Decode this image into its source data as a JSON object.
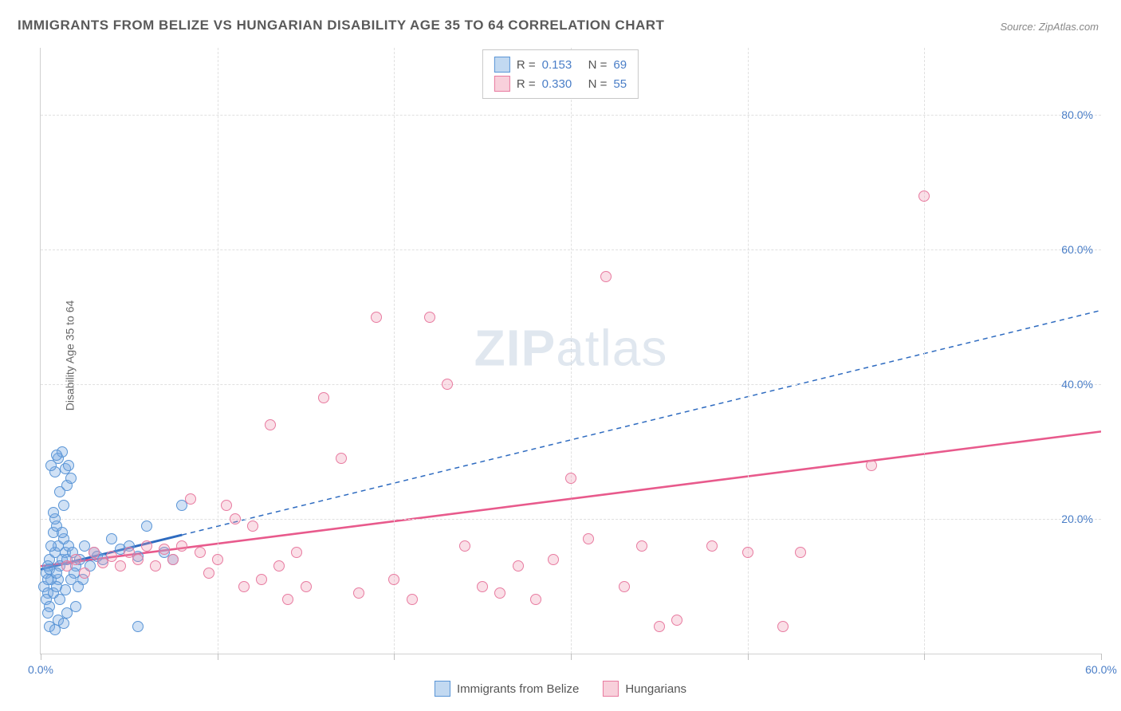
{
  "title": "IMMIGRANTS FROM BELIZE VS HUNGARIAN DISABILITY AGE 35 TO 64 CORRELATION CHART",
  "source": "Source: ZipAtlas.com",
  "y_axis_label": "Disability Age 35 to 64",
  "watermark_bold": "ZIP",
  "watermark_rest": "atlas",
  "chart": {
    "type": "scatter",
    "xlim": [
      0,
      60
    ],
    "ylim": [
      0,
      90
    ],
    "x_ticks": [
      0,
      10,
      20,
      30,
      40,
      50,
      60
    ],
    "x_tick_labels": {
      "0": "0.0%",
      "60": "60.0%"
    },
    "y_ticks": [
      20,
      40,
      60,
      80
    ],
    "y_tick_labels": {
      "20": "20.0%",
      "40": "40.0%",
      "60": "60.0%",
      "80": "80.0%"
    },
    "background_color": "#ffffff",
    "grid_color": "#e0e0e0",
    "series": [
      {
        "name": "Immigrants from Belize",
        "color_fill": "rgba(120,170,225,0.35)",
        "color_border": "#5a95d6",
        "trend_color": "#2e6bc0",
        "trend_style": "solid-then-dashed",
        "trend_solid_xmax": 8,
        "trend_y_at_x0": 12.5,
        "trend_y_at_xmax": 51,
        "R": 0.153,
        "N": 69,
        "points": [
          [
            0.3,
            12
          ],
          [
            0.5,
            14
          ],
          [
            0.6,
            11
          ],
          [
            0.8,
            15
          ],
          [
            0.4,
            13
          ],
          [
            1.0,
            16
          ],
          [
            0.5,
            12.5
          ],
          [
            1.2,
            14
          ],
          [
            0.2,
            10
          ],
          [
            0.7,
            18
          ],
          [
            1.1,
            13
          ],
          [
            0.9,
            19
          ],
          [
            1.3,
            17
          ],
          [
            0.4,
            9
          ],
          [
            0.6,
            16
          ],
          [
            1.4,
            15
          ],
          [
            0.8,
            20
          ],
          [
            1.0,
            11
          ],
          [
            0.3,
            8
          ],
          [
            1.5,
            14
          ],
          [
            0.5,
            7
          ],
          [
            1.2,
            18
          ],
          [
            0.9,
            12
          ],
          [
            1.6,
            16
          ],
          [
            0.7,
            21
          ],
          [
            1.8,
            15
          ],
          [
            2.0,
            13
          ],
          [
            1.1,
            24
          ],
          [
            0.4,
            6
          ],
          [
            1.3,
            22
          ],
          [
            0.8,
            27
          ],
          [
            1.5,
            25
          ],
          [
            1.0,
            29
          ],
          [
            1.7,
            26
          ],
          [
            1.2,
            30
          ],
          [
            0.6,
            28
          ],
          [
            1.4,
            27.5
          ],
          [
            0.9,
            29.5
          ],
          [
            1.6,
            28
          ],
          [
            2.2,
            14
          ],
          [
            2.5,
            16
          ],
          [
            3.0,
            15
          ],
          [
            3.5,
            14
          ],
          [
            4.0,
            17
          ],
          [
            4.5,
            15.5
          ],
          [
            5.0,
            16
          ],
          [
            5.5,
            14.5
          ],
          [
            6.0,
            19
          ],
          [
            7.0,
            15
          ],
          [
            7.5,
            14
          ],
          [
            8.0,
            22
          ],
          [
            2.8,
            13
          ],
          [
            3.2,
            14.5
          ],
          [
            1.9,
            12
          ],
          [
            2.4,
            11
          ],
          [
            0.5,
            4
          ],
          [
            1.0,
            5
          ],
          [
            1.5,
            6
          ],
          [
            2.0,
            7
          ],
          [
            0.8,
            3.5
          ],
          [
            1.3,
            4.5
          ],
          [
            5.5,
            4
          ],
          [
            0.7,
            9
          ],
          [
            1.1,
            8
          ],
          [
            0.4,
            11
          ],
          [
            0.9,
            10
          ],
          [
            1.4,
            9.5
          ],
          [
            1.7,
            11
          ],
          [
            2.1,
            10
          ]
        ]
      },
      {
        "name": "Hungarians",
        "color_fill": "rgba(240,150,175,0.3)",
        "color_border": "#e87ba0",
        "trend_color": "#e85a8c",
        "trend_style": "solid",
        "trend_y_at_x0": 13,
        "trend_y_at_xmax": 33,
        "R": 0.33,
        "N": 55,
        "points": [
          [
            1.5,
            13
          ],
          [
            2.0,
            14
          ],
          [
            2.5,
            12
          ],
          [
            3.0,
            15
          ],
          [
            3.5,
            13.5
          ],
          [
            4.0,
            14.5
          ],
          [
            4.5,
            13
          ],
          [
            5.0,
            15
          ],
          [
            5.5,
            14
          ],
          [
            6.0,
            16
          ],
          [
            6.5,
            13
          ],
          [
            7.0,
            15.5
          ],
          [
            7.5,
            14
          ],
          [
            8.0,
            16
          ],
          [
            9.0,
            15
          ],
          [
            10.0,
            14
          ],
          [
            8.5,
            23
          ],
          [
            10.5,
            22
          ],
          [
            11.0,
            20
          ],
          [
            12.0,
            19
          ],
          [
            13.0,
            34
          ],
          [
            14.0,
            8
          ],
          [
            15.0,
            10
          ],
          [
            16.0,
            38
          ],
          [
            17.0,
            29
          ],
          [
            18.0,
            9
          ],
          [
            19.0,
            50
          ],
          [
            20.0,
            11
          ],
          [
            21.0,
            8
          ],
          [
            22.0,
            50
          ],
          [
            23.0,
            40
          ],
          [
            24.0,
            16
          ],
          [
            25.0,
            10
          ],
          [
            26.0,
            9
          ],
          [
            27.0,
            13
          ],
          [
            28.0,
            8
          ],
          [
            29.0,
            14
          ],
          [
            30.0,
            26
          ],
          [
            31.0,
            17
          ],
          [
            32.0,
            56
          ],
          [
            33.0,
            10
          ],
          [
            34.0,
            16
          ],
          [
            35.0,
            4
          ],
          [
            36.0,
            5
          ],
          [
            38.0,
            16
          ],
          [
            40.0,
            15
          ],
          [
            42.0,
            4
          ],
          [
            43.0,
            15
          ],
          [
            47.0,
            28
          ],
          [
            50.0,
            68
          ],
          [
            11.5,
            10
          ],
          [
            12.5,
            11
          ],
          [
            9.5,
            12
          ],
          [
            13.5,
            13
          ],
          [
            14.5,
            15
          ]
        ]
      }
    ]
  },
  "legend_top": [
    {
      "swatch": "blue",
      "r_label": "R =",
      "r_value": "0.153",
      "n_label": "N =",
      "n_value": "69"
    },
    {
      "swatch": "pink",
      "r_label": "R =",
      "r_value": "0.330",
      "n_label": "N =",
      "n_value": "55"
    }
  ],
  "legend_bottom": [
    {
      "swatch": "blue",
      "label": "Immigrants from Belize"
    },
    {
      "swatch": "pink",
      "label": "Hungarians"
    }
  ]
}
